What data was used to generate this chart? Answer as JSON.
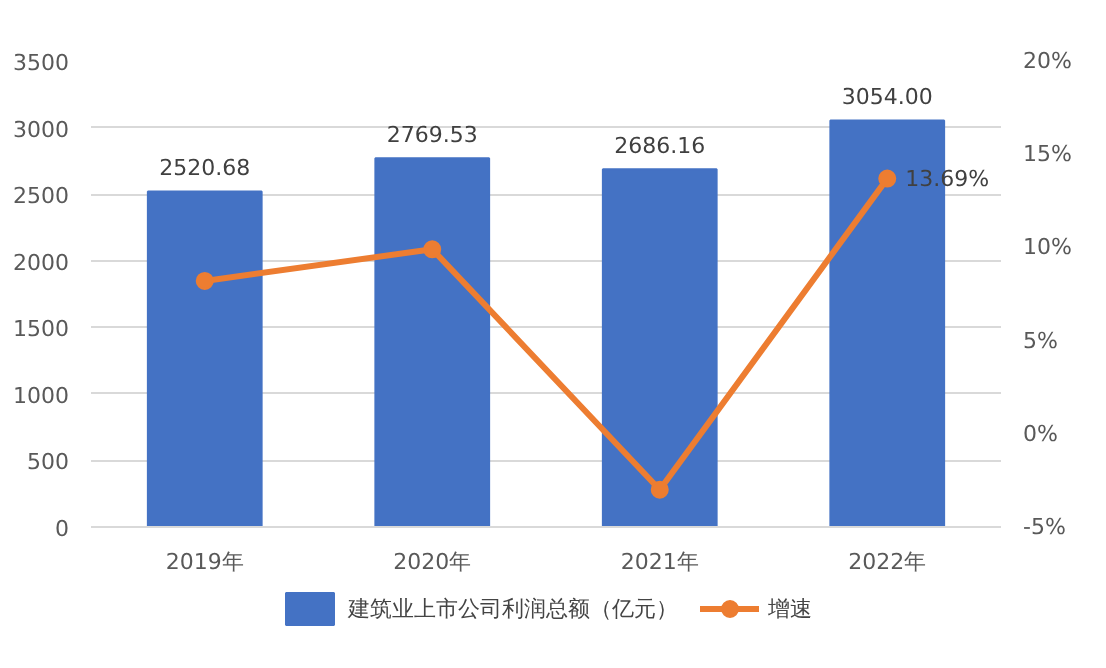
{
  "chart_data": {
    "type": "bar",
    "categories": [
      "2019年",
      "2020年",
      "2021年",
      "2022年"
    ],
    "series": [
      {
        "name": "建筑业上市公司利润总额（亿元）",
        "color": "#4472c4",
        "values": [
          2520.68,
          2769.53,
          2686.16,
          3054.0
        ],
        "value_labels": [
          "2520.68",
          "2769.53",
          "2686.16",
          "3054.00"
        ]
      },
      {
        "name": "增速",
        "type": "line",
        "axis": "y2",
        "color": "#ed7d31",
        "values": [
          8.2,
          9.9,
          -3.0,
          13.69
        ],
        "value_labels": [
          null,
          null,
          null,
          "13.69%"
        ]
      }
    ],
    "ylim": [
      0,
      3500
    ],
    "yticks": [
      0,
      500,
      1000,
      1500,
      2000,
      2500,
      3000,
      3500
    ],
    "y2lim": [
      -5,
      20
    ],
    "y2ticks": [
      {
        "value": -5,
        "label": "-5%"
      },
      {
        "value": 0,
        "label": "0%"
      },
      {
        "value": 5,
        "label": "5%"
      },
      {
        "value": 10,
        "label": "10%"
      },
      {
        "value": 15,
        "label": "15%"
      },
      {
        "value": 20,
        "label": "20%"
      }
    ],
    "grid": "y",
    "legend": "bottom",
    "marker": "circle",
    "line_style": "solid"
  }
}
